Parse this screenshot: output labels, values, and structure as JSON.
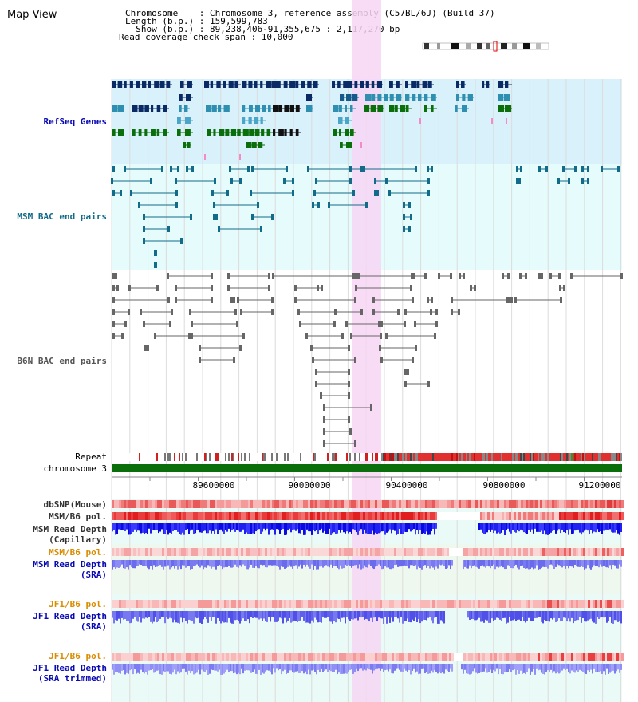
{
  "view_title": "Map View",
  "header": {
    "chromosome_line": "Chromosome    : Chromosome 3, reference assembly (C57BL/6J) (Build 37)",
    "length_line": "Length (b.p.) : 159,599,783",
    "show_line": "  Show (b.p.) : 89,238,406-91,355,675 : 2,117,270 bp",
    "span_line": "Read coverage check span : 10,000"
  },
  "tracks": {
    "refseq": "RefSeq Genes",
    "msm_bac": "MSM BAC end pairs",
    "b6n_bac": "B6N BAC end pairs",
    "repeat": "Repeat",
    "chromosome": "chromosome 3",
    "dbsnp": "dbSNP(Mouse)",
    "msm_b6_pol_1": "MSM/B6 pol.",
    "msm_depth_cap_1": "MSM Read Depth",
    "msm_depth_cap_2": "(Capillary)",
    "msm_b6_pol_2": "MSM/B6 pol.",
    "msm_depth_sra_1": "MSM Read Depth",
    "msm_depth_sra_2": "(SRA)",
    "jf1_pol_1": "JF1/B6 pol.",
    "jf1_depth_sra_1": "JF1 Read Depth",
    "jf1_depth_sra_2": "(SRA)",
    "jf1_pol_2": "JF1/B6 pol.",
    "jf1_depth_trim_1": "JF1 Read Depth",
    "jf1_depth_trim_2": "(SRA trimmed)"
  },
  "axis_ticks": [
    "89600000",
    "90000000",
    "90400000",
    "90800000",
    "91200000"
  ],
  "colors": {
    "refseq_bg": "#d9f1fb",
    "bac_bg": "#e6fbfb",
    "highlight": "#f7d6f5",
    "chromosome_bar": "#0a6e0a",
    "label_blue": "#0a0ab4",
    "label_teal": "#136b8a",
    "label_orange": "#d98c00"
  }
}
